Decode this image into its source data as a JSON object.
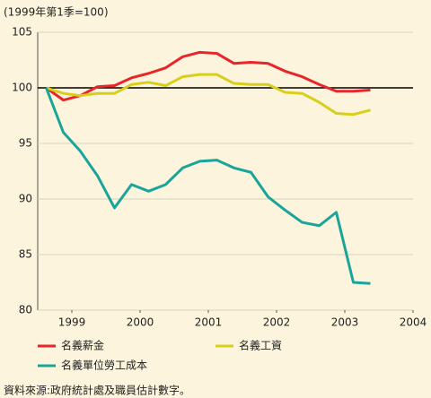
{
  "chart_data": {
    "type": "line",
    "subtitle": "(1999年第1季=100)",
    "source": "資料來源:政府統計處及職員估計數字。",
    "x": [
      1999,
      1999.25,
      1999.5,
      1999.75,
      2000,
      2000.25,
      2000.5,
      2000.75,
      2001,
      2001.25,
      2001.5,
      2001.75,
      2002,
      2002.25,
      2002.5,
      2002.75,
      2003,
      2003.25,
      2003.5,
      2003.75
    ],
    "series": [
      {
        "name": "名義薪金",
        "color": "#e8262a",
        "values": [
          100,
          98.9,
          99.3,
          100.1,
          100.2,
          100.9,
          101.3,
          101.8,
          102.8,
          103.2,
          103.1,
          102.2,
          102.3,
          102.2,
          101.5,
          101.0,
          100.3,
          99.7,
          99.7,
          99.8
        ]
      },
      {
        "name": "名義工資",
        "color": "#d8cf1c",
        "values": [
          100,
          99.5,
          99.3,
          99.5,
          99.5,
          100.3,
          100.5,
          100.2,
          101.0,
          101.2,
          101.2,
          100.4,
          100.3,
          100.3,
          99.6,
          99.5,
          98.7,
          97.7,
          97.6,
          98.0
        ]
      },
      {
        "name": "名義單位勞工成本",
        "color": "#1aa59a",
        "values": [
          100,
          96.0,
          94.3,
          92.1,
          89.2,
          91.3,
          90.7,
          91.3,
          92.8,
          93.4,
          93.5,
          92.8,
          92.4,
          90.2,
          89.0,
          87.9,
          87.6,
          88.8,
          82.5,
          82.4
        ]
      }
    ],
    "xlim": [
      1998.875,
      2004.375
    ],
    "xticks": [
      {
        "value": 1999.375,
        "label": "1999"
      },
      {
        "value": 2000.375,
        "label": "2000"
      },
      {
        "value": 2001.375,
        "label": "2001"
      },
      {
        "value": 2002.375,
        "label": "2002"
      },
      {
        "value": 2003.375,
        "label": "2003"
      },
      {
        "value": 2004.375,
        "label": "2004"
      }
    ],
    "ylim": [
      80,
      105
    ],
    "yticks": [
      80,
      85,
      90,
      95,
      100,
      105
    ],
    "reference_line": 100,
    "grid": true
  }
}
